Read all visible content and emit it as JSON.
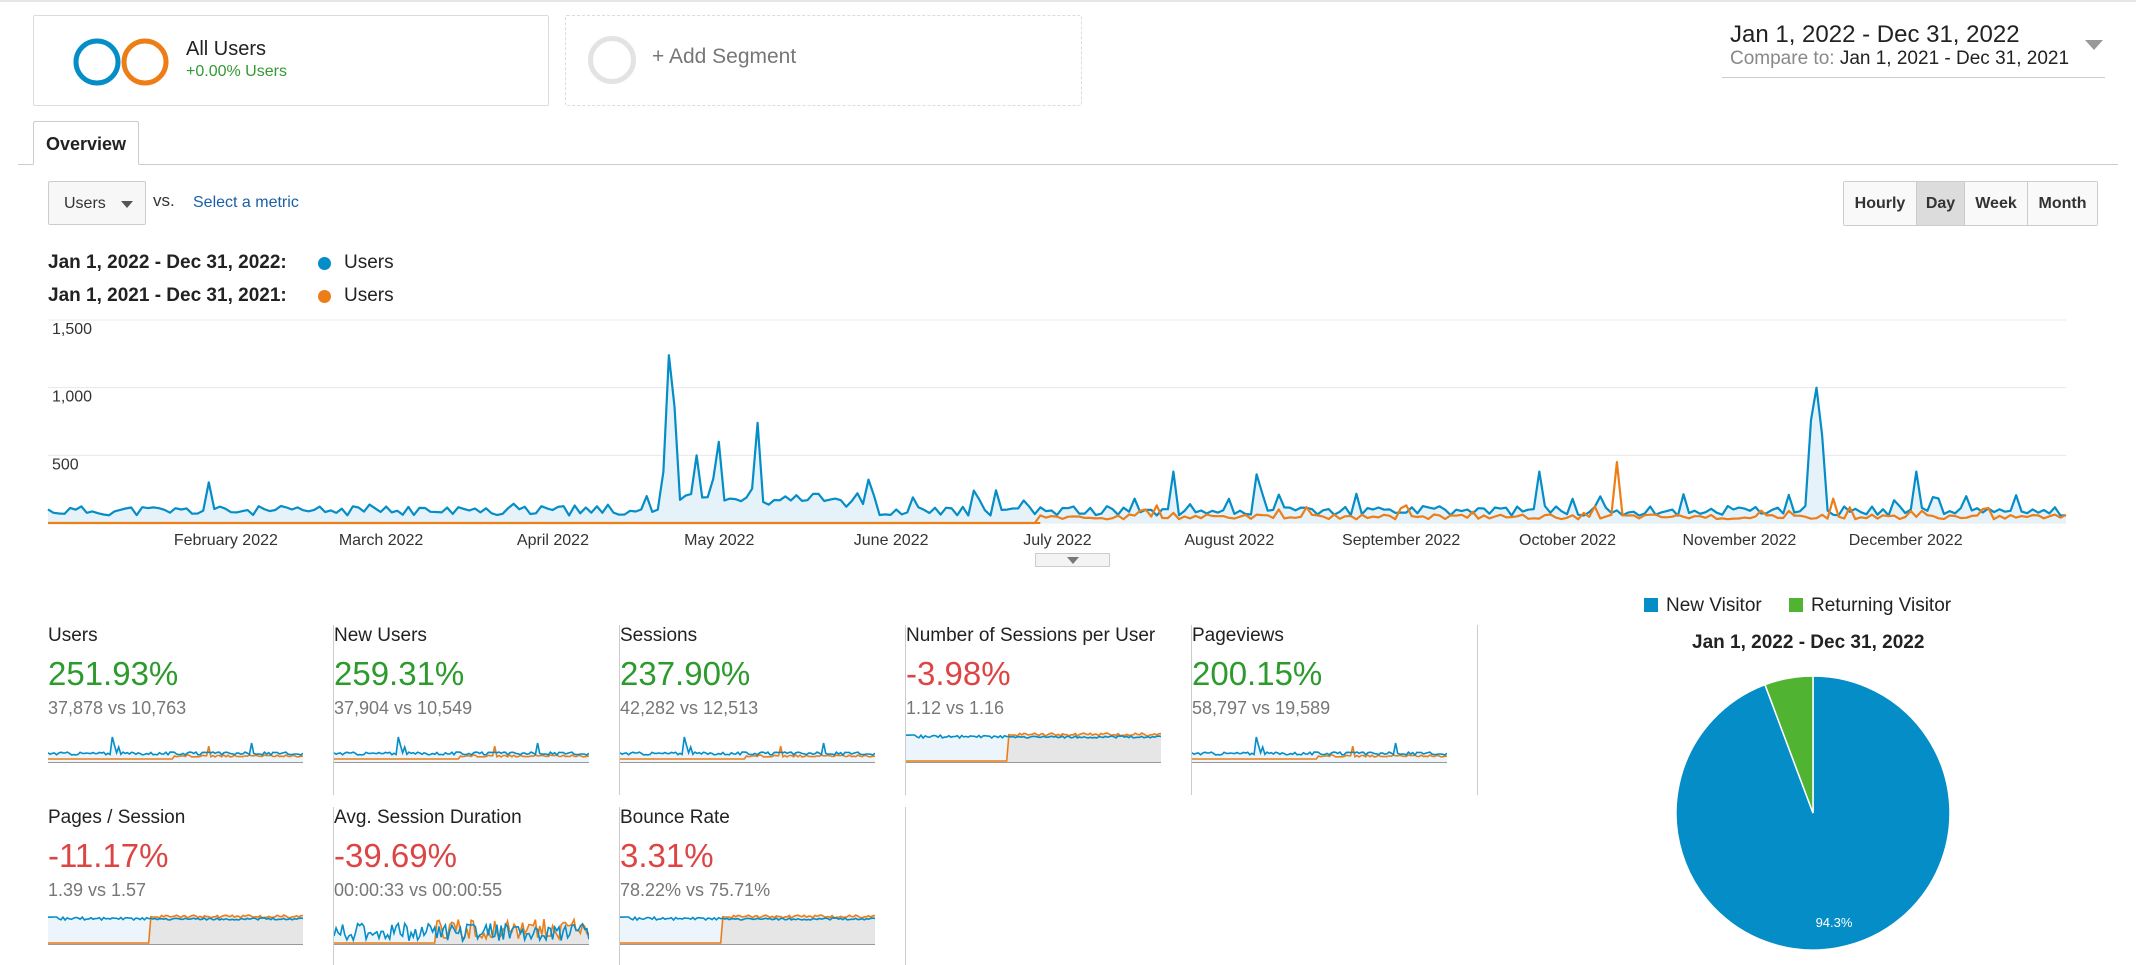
{
  "segments": {
    "all_users": {
      "name": "All Users",
      "sub": "+0.00% Users"
    },
    "add_label": "+ Add Segment"
  },
  "date_range": {
    "main": "Jan 1, 2022 - Dec 31, 2022",
    "compare_label": "Compare to:",
    "compare_value": "Jan 1, 2021 - Dec 31, 2021"
  },
  "tabs": [
    {
      "label": "Overview"
    }
  ],
  "controls": {
    "metric": "Users",
    "vs": "vs.",
    "select_metric": "Select a metric",
    "granularity": [
      "Hourly",
      "Day",
      "Week",
      "Month"
    ],
    "selected_granularity": "Day"
  },
  "legend": [
    {
      "range": "Jan 1, 2022 - Dec 31, 2022:",
      "series": "Users",
      "color": "#058dc7"
    },
    {
      "range": "Jan 1, 2021 - Dec 31, 2021:",
      "series": "Users",
      "color": "#ed7e17"
    }
  ],
  "chart_data": {
    "type": "line",
    "y_ticks": [
      "1,500",
      "1,000",
      "500"
    ],
    "y_tick_values": [
      1500,
      1000,
      500
    ],
    "ylim": [
      0,
      1500
    ],
    "x_tick_labels": [
      "February 2022",
      "March 2022",
      "April 2022",
      "May 2022",
      "June 2022",
      "July 2022",
      "August 2022",
      "September 2022",
      "October 2022",
      "November 2022",
      "December 2022"
    ],
    "x_tick_days": [
      31,
      59,
      90,
      120,
      151,
      181,
      212,
      243,
      273,
      304,
      334
    ],
    "series": [
      {
        "key": "current",
        "color": "#058dc7",
        "fill": true,
        "peaks": [
          [
            29,
            300
          ],
          [
            111,
            380
          ],
          [
            112,
            1240
          ],
          [
            113,
            860
          ],
          [
            117,
            500
          ],
          [
            121,
            600
          ],
          [
            128,
            740
          ],
          [
            203,
            380
          ],
          [
            218,
            360
          ],
          [
            269,
            380
          ],
          [
            318,
            760
          ],
          [
            319,
            1000
          ],
          [
            320,
            650
          ],
          [
            337,
            380
          ],
          [
            375,
            150
          ]
        ],
        "base": 90
      },
      {
        "key": "previous",
        "color": "#ed7e17",
        "fill": false,
        "start_day": 179,
        "peaks": [
          [
            200,
            130
          ],
          [
            245,
            130
          ],
          [
            283,
            450
          ],
          [
            322,
            180
          ],
          [
            350,
            110
          ]
        ],
        "base": 45
      }
    ]
  },
  "scorecards": [
    {
      "label": "Users",
      "pct": "251.93%",
      "dir": "pos",
      "cmp": "37,878 vs 10,763",
      "spark": "spiky"
    },
    {
      "label": "New Users",
      "pct": "259.31%",
      "dir": "pos",
      "cmp": "37,904 vs 10,549",
      "spark": "spiky"
    },
    {
      "label": "Sessions",
      "pct": "237.90%",
      "dir": "pos",
      "cmp": "42,282 vs 12,513",
      "spark": "spiky"
    },
    {
      "label": "Number of Sessions per User",
      "pct": "-3.98%",
      "dir": "neg",
      "cmp": "1.12 vs 1.16",
      "spark": "flat"
    },
    {
      "label": "Pageviews",
      "pct": "200.15%",
      "dir": "pos",
      "cmp": "58,797 vs 19,589",
      "spark": "spiky"
    },
    {
      "label": "Pages / Session",
      "pct": "-11.17%",
      "dir": "neg",
      "cmp": "1.39 vs 1.57",
      "spark": "flat"
    },
    {
      "label": "Avg. Session Duration",
      "pct": "-39.69%",
      "dir": "neg",
      "cmp": "00:00:33 vs 00:00:55",
      "spark": "noisy"
    },
    {
      "label": "Bounce Rate",
      "pct": "3.31%",
      "dir": "pos_bad",
      "cmp": "78.22% vs 75.71%",
      "spark": "flat"
    }
  ],
  "pie": {
    "legend": [
      {
        "label": "New Visitor",
        "color": "#058dc7"
      },
      {
        "label": "Returning Visitor",
        "color": "#50b432"
      }
    ],
    "title": "Jan 1, 2022 - Dec 31, 2022",
    "chart_data": {
      "type": "pie",
      "categories": [
        "New Visitor",
        "Returning Visitor"
      ],
      "values": [
        94.3,
        5.7
      ],
      "slice_label": "94.3%"
    }
  }
}
